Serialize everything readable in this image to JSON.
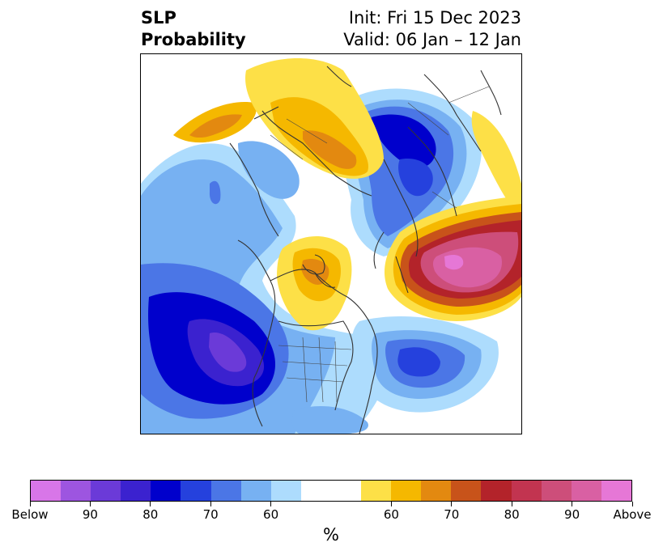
{
  "title": {
    "line1": "SLP",
    "line2": "Probability",
    "init": "Init: Fri 15 Dec 2023",
    "valid": "Valid: 06 Jan – 12 Jan"
  },
  "colorbar": {
    "unit": "%",
    "colors": [
      "#d876e8",
      "#9d55e0",
      "#6b3ad8",
      "#3b22cf",
      "#0000cc",
      "#2541dd",
      "#4b76e6",
      "#77b1f2",
      "#addcfd",
      "#ffffff",
      "#ffffff",
      "#fde047",
      "#f5b800",
      "#e38910",
      "#c8531a",
      "#b3232a",
      "#c23450",
      "#cd4e7a",
      "#d960a3",
      "#e677d6"
    ],
    "tick_labels": [
      "Below",
      "90",
      "80",
      "70",
      "60",
      "60",
      "70",
      "80",
      "90",
      "Above"
    ]
  },
  "map": {
    "projection": "north-polar-stereographic",
    "legend_meaning": {
      "blue_purple": "Below-normal SLP probability",
      "yellow_red_pink": "Above-normal SLP probability"
    }
  }
}
